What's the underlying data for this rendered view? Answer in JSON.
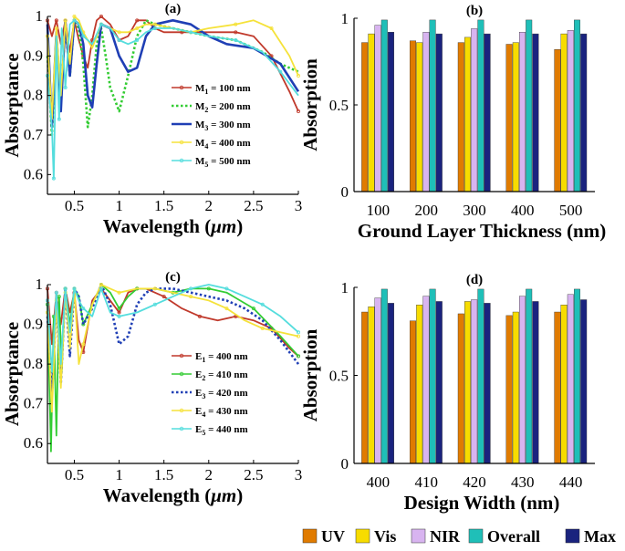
{
  "chart_data": [
    {
      "id": "a",
      "type": "line",
      "title": "(a)",
      "xlabel": "Wavelength (",
      "xlabel_unit": "μm",
      "xlabel_close": ")",
      "ylabel": "Absorptance",
      "xlim": [
        0.2,
        3
      ],
      "ylim": [
        0.55,
        1.0
      ],
      "xticks": [
        0.5,
        1,
        1.5,
        2,
        2.5,
        3
      ],
      "xtick_labels": [
        "0.5",
        "1",
        "1.5",
        "2",
        "2.5",
        "3"
      ],
      "yticks": [
        0.6,
        0.7,
        0.8,
        0.9,
        1.0
      ],
      "ytick_labels": [
        "0.6",
        "0.7",
        "0.8",
        "0.9",
        "1"
      ],
      "legend_position": "center-right",
      "series": [
        {
          "name": "M",
          "sub": "1",
          "suffix": " = 100 nm",
          "color": "#c0392b",
          "style": "solid-marker",
          "x": [
            0.2,
            0.25,
            0.3,
            0.35,
            0.4,
            0.45,
            0.5,
            0.55,
            0.6,
            0.65,
            0.7,
            0.75,
            0.8,
            0.9,
            1.0,
            1.1,
            1.2,
            1.3,
            1.4,
            1.5,
            1.7,
            2.0,
            2.3,
            2.5,
            2.7,
            2.9,
            3.0
          ],
          "y": [
            0.99,
            0.95,
            0.99,
            0.93,
            0.99,
            0.91,
            0.99,
            0.94,
            0.9,
            0.87,
            0.94,
            0.99,
            1.0,
            0.98,
            0.94,
            0.95,
            0.99,
            0.99,
            0.97,
            0.96,
            0.96,
            0.96,
            0.96,
            0.95,
            0.9,
            0.81,
            0.76
          ]
        },
        {
          "name": "M",
          "sub": "2",
          "suffix": " = 200 nm",
          "color": "#33cc33",
          "style": "dotted",
          "x": [
            0.2,
            0.25,
            0.3,
            0.35,
            0.4,
            0.45,
            0.5,
            0.55,
            0.6,
            0.65,
            0.7,
            0.75,
            0.8,
            0.85,
            0.9,
            1.0,
            1.1,
            1.2,
            1.3,
            1.4,
            1.6,
            1.8,
            2.0,
            2.3,
            2.6,
            2.8,
            3.0
          ],
          "y": [
            0.9,
            0.7,
            0.95,
            0.78,
            0.98,
            0.85,
            0.99,
            0.97,
            0.88,
            0.72,
            0.8,
            0.93,
            0.97,
            0.9,
            0.82,
            0.76,
            0.85,
            0.95,
            0.99,
            0.98,
            0.97,
            0.96,
            0.95,
            0.94,
            0.91,
            0.88,
            0.86
          ]
        },
        {
          "name": "M",
          "sub": "3",
          "suffix": " = 300 nm",
          "color": "#1f3fb5",
          "style": "solid-thick",
          "x": [
            0.2,
            0.25,
            0.3,
            0.35,
            0.4,
            0.45,
            0.5,
            0.55,
            0.6,
            0.65,
            0.7,
            0.75,
            0.8,
            0.9,
            1.0,
            1.1,
            1.2,
            1.3,
            1.4,
            1.6,
            1.8,
            2.0,
            2.2,
            2.5,
            2.8,
            3.0
          ],
          "y": [
            0.98,
            0.72,
            0.96,
            0.76,
            0.99,
            0.85,
            0.99,
            0.98,
            0.93,
            0.8,
            0.77,
            0.88,
            0.98,
            0.97,
            0.9,
            0.86,
            0.87,
            0.95,
            0.98,
            0.99,
            0.98,
            0.95,
            0.93,
            0.92,
            0.88,
            0.81
          ]
        },
        {
          "name": "M",
          "sub": "4",
          "suffix": " = 400 nm",
          "color": "#f5e23a",
          "style": "solid-marker",
          "x": [
            0.2,
            0.25,
            0.3,
            0.35,
            0.4,
            0.45,
            0.5,
            0.55,
            0.6,
            0.7,
            0.8,
            0.9,
            1.0,
            1.1,
            1.2,
            1.3,
            1.4,
            1.6,
            1.8,
            2.0,
            2.3,
            2.5,
            2.7,
            2.9,
            3.0
          ],
          "y": [
            0.95,
            0.74,
            0.97,
            0.8,
            0.99,
            0.88,
            1.0,
            0.99,
            0.96,
            0.92,
            0.98,
            0.97,
            0.96,
            0.96,
            0.97,
            0.98,
            0.98,
            0.97,
            0.96,
            0.97,
            0.98,
            0.99,
            0.97,
            0.9,
            0.85
          ]
        },
        {
          "name": "M",
          "sub": "5",
          "suffix": " = 500 nm",
          "color": "#55dddd",
          "style": "solid-marker",
          "x": [
            0.2,
            0.25,
            0.27,
            0.3,
            0.33,
            0.36,
            0.4,
            0.45,
            0.5,
            0.55,
            0.6,
            0.7,
            0.8,
            0.9,
            1.0,
            1.1,
            1.2,
            1.3,
            1.4,
            1.6,
            1.8,
            2.0,
            2.3,
            2.6,
            2.8,
            3.0
          ],
          "y": [
            0.85,
            0.72,
            0.59,
            0.95,
            0.74,
            0.97,
            0.82,
            0.98,
            0.99,
            0.98,
            0.95,
            0.93,
            0.98,
            0.97,
            0.94,
            0.93,
            0.94,
            0.96,
            0.97,
            0.97,
            0.96,
            0.95,
            0.94,
            0.91,
            0.86,
            0.8
          ]
        }
      ]
    },
    {
      "id": "b",
      "type": "bar",
      "title": "(b)",
      "xlabel": "Ground Layer Thickness (nm)",
      "ylabel": "Absorption",
      "ylim": [
        0,
        1
      ],
      "yticks": [
        0,
        0.5,
        1
      ],
      "ytick_labels": [
        "0",
        "0.5",
        "1"
      ],
      "categories": [
        "100",
        "200",
        "300",
        "400",
        "500"
      ],
      "series": [
        {
          "name": "UV",
          "color": "#e07b00",
          "values": [
            0.86,
            0.87,
            0.86,
            0.85,
            0.82
          ]
        },
        {
          "name": "Vis",
          "color": "#f7dc00",
          "values": [
            0.91,
            0.86,
            0.89,
            0.86,
            0.91
          ]
        },
        {
          "name": "NIR",
          "color": "#d8b4f0",
          "values": [
            0.96,
            0.92,
            0.94,
            0.92,
            0.93
          ]
        },
        {
          "name": "Overall",
          "color": "#1fbfb8",
          "values": [
            0.99,
            0.99,
            0.99,
            0.99,
            0.99
          ]
        },
        {
          "name": "Max",
          "color": "#1a237e",
          "values": [
            0.92,
            0.91,
            0.91,
            0.91,
            0.91
          ]
        }
      ]
    },
    {
      "id": "c",
      "type": "line",
      "title": "(c)",
      "xlabel": "Wavelength (",
      "xlabel_unit": "μm",
      "xlabel_close": ")",
      "ylabel": "Absorptance",
      "xlim": [
        0.2,
        3
      ],
      "ylim": [
        0.55,
        1.0
      ],
      "xticks": [
        0.5,
        1,
        1.5,
        2,
        2.5,
        3
      ],
      "xtick_labels": [
        "0.5",
        "1",
        "1.5",
        "2",
        "2.5",
        "3"
      ],
      "yticks": [
        0.6,
        0.7,
        0.8,
        0.9,
        1.0
      ],
      "ytick_labels": [
        "0.6",
        "0.7",
        "0.8",
        "0.9",
        "1"
      ],
      "legend_position": "center-right",
      "series": [
        {
          "name": "E",
          "sub": "1",
          "suffix": " = 400 nm",
          "color": "#c0392b",
          "style": "solid-marker",
          "x": [
            0.2,
            0.25,
            0.3,
            0.35,
            0.4,
            0.45,
            0.5,
            0.55,
            0.6,
            0.7,
            0.8,
            0.9,
            1.0,
            1.1,
            1.2,
            1.3,
            1.5,
            1.7,
            1.9,
            2.1,
            2.3,
            2.5,
            2.7,
            2.9,
            3.0
          ],
          "y": [
            0.99,
            0.85,
            0.98,
            0.9,
            0.99,
            0.93,
            0.98,
            0.86,
            0.83,
            0.96,
            0.99,
            0.96,
            0.93,
            0.98,
            0.99,
            0.99,
            0.97,
            0.94,
            0.92,
            0.91,
            0.92,
            0.91,
            0.89,
            0.84,
            0.82
          ]
        },
        {
          "name": "E",
          "sub": "2",
          "suffix": " = 410 nm",
          "color": "#33cc33",
          "style": "solid-marker",
          "x": [
            0.2,
            0.24,
            0.27,
            0.3,
            0.33,
            0.36,
            0.4,
            0.45,
            0.5,
            0.55,
            0.6,
            0.7,
            0.8,
            0.9,
            1.0,
            1.1,
            1.2,
            1.4,
            1.6,
            1.8,
            2.0,
            2.2,
            2.5,
            2.8,
            3.0
          ],
          "y": [
            0.95,
            0.58,
            0.92,
            0.62,
            0.97,
            0.78,
            0.99,
            0.9,
            0.99,
            0.97,
            0.9,
            0.95,
            1.0,
            0.98,
            0.94,
            0.97,
            0.99,
            0.99,
            0.98,
            0.99,
            0.99,
            0.98,
            0.94,
            0.87,
            0.82
          ]
        },
        {
          "name": "E",
          "sub": "3",
          "suffix": " = 420 nm",
          "color": "#1f3fb5",
          "style": "dotted",
          "x": [
            0.2,
            0.25,
            0.3,
            0.35,
            0.4,
            0.45,
            0.5,
            0.55,
            0.6,
            0.7,
            0.8,
            0.9,
            1.0,
            1.1,
            1.2,
            1.3,
            1.4,
            1.6,
            1.8,
            2.0,
            2.2,
            2.4,
            2.6,
            2.8,
            3.0
          ],
          "y": [
            0.92,
            0.72,
            0.96,
            0.75,
            0.99,
            0.82,
            0.99,
            0.97,
            0.9,
            0.94,
            1.0,
            0.95,
            0.85,
            0.87,
            0.95,
            0.98,
            0.99,
            0.99,
            0.98,
            0.97,
            0.96,
            0.94,
            0.91,
            0.86,
            0.8
          ]
        },
        {
          "name": "E",
          "sub": "4",
          "suffix": " = 430 nm",
          "color": "#f5e23a",
          "style": "solid-marker",
          "x": [
            0.2,
            0.25,
            0.3,
            0.35,
            0.4,
            0.45,
            0.5,
            0.55,
            0.6,
            0.7,
            0.8,
            0.9,
            1.0,
            1.2,
            1.4,
            1.6,
            1.8,
            2.0,
            2.2,
            2.4,
            2.6,
            2.8,
            3.0
          ],
          "y": [
            0.93,
            0.68,
            0.96,
            0.74,
            0.98,
            0.84,
            0.99,
            0.8,
            0.85,
            0.95,
            1.0,
            0.99,
            0.98,
            0.99,
            0.99,
            0.98,
            0.97,
            0.96,
            0.94,
            0.91,
            0.89,
            0.88,
            0.87
          ]
        },
        {
          "name": "E",
          "sub": "5",
          "suffix": " = 440 nm",
          "color": "#55dddd",
          "style": "solid-marker",
          "x": [
            0.2,
            0.25,
            0.3,
            0.35,
            0.4,
            0.45,
            0.5,
            0.55,
            0.6,
            0.7,
            0.8,
            0.9,
            1.0,
            1.2,
            1.4,
            1.6,
            1.8,
            2.0,
            2.2,
            2.4,
            2.6,
            2.8,
            3.0
          ],
          "y": [
            0.96,
            0.78,
            0.98,
            0.8,
            0.99,
            0.88,
            0.99,
            0.96,
            0.94,
            0.92,
            0.99,
            0.93,
            0.92,
            0.93,
            0.95,
            0.97,
            0.99,
            1.0,
            0.99,
            0.97,
            0.95,
            0.92,
            0.88
          ]
        }
      ]
    },
    {
      "id": "d",
      "type": "bar",
      "title": "(d)",
      "xlabel": "Design Width (nm)",
      "ylabel": "Absorption",
      "ylim": [
        0,
        1
      ],
      "yticks": [
        0,
        0.5,
        1
      ],
      "ytick_labels": [
        "0",
        "0.5",
        "1"
      ],
      "categories": [
        "400",
        "410",
        "420",
        "430",
        "440"
      ],
      "series": [
        {
          "name": "UV",
          "color": "#e07b00",
          "values": [
            0.86,
            0.81,
            0.85,
            0.84,
            0.86
          ]
        },
        {
          "name": "Vis",
          "color": "#f7dc00",
          "values": [
            0.89,
            0.9,
            0.92,
            0.86,
            0.9
          ]
        },
        {
          "name": "NIR",
          "color": "#d8b4f0",
          "values": [
            0.94,
            0.95,
            0.93,
            0.95,
            0.96
          ]
        },
        {
          "name": "Overall",
          "color": "#1fbfb8",
          "values": [
            0.99,
            0.99,
            0.99,
            0.99,
            0.99
          ]
        },
        {
          "name": "Max",
          "color": "#1a237e",
          "values": [
            0.91,
            0.92,
            0.91,
            0.92,
            0.93
          ]
        }
      ]
    }
  ],
  "bottom_legend": [
    {
      "name": "UV",
      "color": "#e07b00"
    },
    {
      "name": "Vis",
      "color": "#f7dc00"
    },
    {
      "name": "NIR",
      "color": "#d8b4f0"
    },
    {
      "name": "Overall",
      "color": "#1fbfb8"
    },
    {
      "name": "Max",
      "color": "#1a237e"
    }
  ]
}
